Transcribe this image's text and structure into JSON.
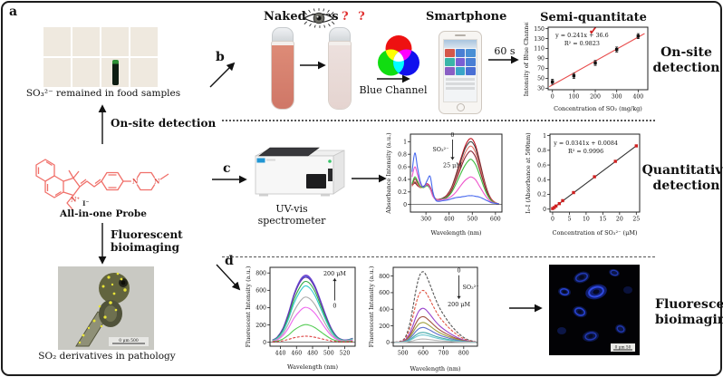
{
  "figure": {
    "panel_a_label": "a",
    "panel_b_label": "b",
    "panel_c_label": "c",
    "panel_d_label": "d"
  },
  "left_column": {
    "food_caption": "SO₃²⁻ remained in food samples",
    "onsite_arrow_label": "On-site detection",
    "probe_name": "All-in-one Probe",
    "structure_labels": {
      "n_plus": "N⁺",
      "n_left": "N",
      "n_right": "N",
      "iodide": "I⁻"
    },
    "bioimaging_arrow_line1": "Fluorescent",
    "bioimaging_arrow_line2": "bioimaging",
    "fish_caption": "SO₂ derivatives in pathology",
    "fish_scalebar": "0   μm   500"
  },
  "panel_b": {
    "naked_eyes_label": "Naked eyes",
    "question_marks": "? ?",
    "blue_channel_label": "Blue Channel",
    "smartphone_label": "Smartphone",
    "reaction_time": "60 s",
    "plot_title": "Semi-quantitate",
    "check_mark": "✓",
    "side_label_line1": "On-site",
    "side_label_line2": "detection"
  },
  "panel_c": {
    "instrument_line1": "UV-vis",
    "instrument_line2": "spectrometer",
    "side_label_line1": "Quantitative",
    "side_label_line2": "detection"
  },
  "panel_d": {
    "side_label_line1": "Fluorescent",
    "side_label_line2": "bioimaging",
    "cell_scalebar": "0  μm  50"
  },
  "colors": {
    "accent_red": "#e03030",
    "probe_structure": "#f0706a",
    "fit_line_red": "#e84c4c"
  },
  "chart_data": [
    {
      "id": "blue-channel-calibration",
      "type": "scatter",
      "title": "Semi-quantitate",
      "xlabel": "Concentration of SO₂ (mg/kg)",
      "ylabel": "Intensity of Blue Channel",
      "xlim": [
        -20,
        445
      ],
      "ylim": [
        27,
        153
      ],
      "xticks": [
        0,
        100,
        200,
        300,
        400
      ],
      "yticks": [
        30,
        50,
        70,
        90,
        110,
        130,
        150
      ],
      "points": [
        [
          0,
          43
        ],
        [
          100,
          55
        ],
        [
          200,
          81
        ],
        [
          300,
          108
        ],
        [
          400,
          135
        ]
      ],
      "error": 5,
      "point_color": "#111111",
      "fit": {
        "slope": 0.241,
        "intercept": 36.6,
        "color": "#e84c4c",
        "x0": -15,
        "x1": 430
      },
      "annotations": [
        {
          "x": 0.34,
          "y": 0.16,
          "lines": [
            "y = 0.241x + 36.6",
            "R² = 0.9823"
          ]
        }
      ]
    },
    {
      "id": "absorbance-spectra",
      "type": "line",
      "xlabel": "Wavelength (nm)",
      "ylabel": "Absorbance Intensity (a.u.)",
      "xlim": [
        233,
        628
      ],
      "ylim": [
        -0.12,
        1.12
      ],
      "xticks": [
        300,
        400,
        500,
        600
      ],
      "yticks": [
        0,
        0.2,
        0.4,
        0.6,
        0.8,
        1
      ],
      "hline": 0,
      "x": [
        240,
        252,
        264,
        276,
        290,
        305,
        318,
        330,
        342,
        356,
        372,
        390,
        410,
        430,
        450,
        468,
        482,
        492,
        502,
        515,
        530,
        548,
        565,
        582,
        600,
        615
      ],
      "series": [
        {
          "color": "#c1121f",
          "y": [
            0.3,
            0.34,
            0.3,
            0.27,
            0.29,
            0.33,
            0.28,
            0.16,
            0.09,
            0.08,
            0.1,
            0.15,
            0.27,
            0.48,
            0.72,
            0.92,
            1.02,
            1.05,
            1.03,
            0.93,
            0.72,
            0.44,
            0.22,
            0.09,
            0.03,
            0.01
          ]
        },
        {
          "color": "#444444",
          "y": [
            0.3,
            0.35,
            0.31,
            0.27,
            0.29,
            0.32,
            0.27,
            0.15,
            0.09,
            0.08,
            0.1,
            0.14,
            0.26,
            0.46,
            0.69,
            0.88,
            0.97,
            1.0,
            0.98,
            0.89,
            0.69,
            0.42,
            0.21,
            0.08,
            0.03,
            0.01
          ]
        },
        {
          "color": "#e8756a",
          "y": [
            0.29,
            0.37,
            0.32,
            0.27,
            0.28,
            0.31,
            0.26,
            0.15,
            0.09,
            0.08,
            0.09,
            0.13,
            0.24,
            0.42,
            0.63,
            0.81,
            0.9,
            0.93,
            0.91,
            0.82,
            0.64,
            0.39,
            0.19,
            0.08,
            0.03,
            0.01
          ]
        },
        {
          "color": "#8b2635",
          "y": [
            0.31,
            0.41,
            0.35,
            0.29,
            0.28,
            0.31,
            0.26,
            0.14,
            0.08,
            0.08,
            0.09,
            0.12,
            0.22,
            0.39,
            0.58,
            0.74,
            0.82,
            0.85,
            0.83,
            0.75,
            0.58,
            0.36,
            0.18,
            0.07,
            0.02,
            0.01
          ]
        },
        {
          "color": "#3dbb3d",
          "y": [
            0.33,
            0.44,
            0.37,
            0.29,
            0.27,
            0.3,
            0.25,
            0.14,
            0.08,
            0.07,
            0.09,
            0.11,
            0.19,
            0.33,
            0.49,
            0.62,
            0.69,
            0.72,
            0.7,
            0.63,
            0.49,
            0.3,
            0.15,
            0.06,
            0.02,
            0.01
          ]
        },
        {
          "color": "#ee55cc",
          "y": [
            0.44,
            0.6,
            0.47,
            0.33,
            0.28,
            0.32,
            0.26,
            0.13,
            0.08,
            0.07,
            0.08,
            0.09,
            0.13,
            0.2,
            0.3,
            0.38,
            0.42,
            0.44,
            0.43,
            0.39,
            0.3,
            0.19,
            0.1,
            0.04,
            0.02,
            0.01
          ]
        },
        {
          "color": "#4466ee",
          "y": [
            0.52,
            0.82,
            0.58,
            0.36,
            0.28,
            0.38,
            0.45,
            0.2,
            0.07,
            0.05,
            0.06,
            0.07,
            0.09,
            0.11,
            0.12,
            0.13,
            0.14,
            0.14,
            0.14,
            0.13,
            0.12,
            0.09,
            0.06,
            0.03,
            0.02,
            0.01
          ]
        }
      ],
      "conc_arrow": {
        "fx": 0.46,
        "fy0": 0.07,
        "fy1": 0.33,
        "dir": "down",
        "top": "0",
        "bottom": "25 μM",
        "side": "SO₃²⁻",
        "side_pos": "left"
      }
    },
    {
      "id": "sulfite-calibration",
      "type": "scatter",
      "xlabel": "Concentration of SO₃²⁻ (μM)",
      "ylabel": "I₀-I (Absorbance at 500nm)",
      "xlim": [
        -0.8,
        26
      ],
      "ylim": [
        -0.04,
        1.02
      ],
      "xticks": [
        0,
        5,
        10,
        15,
        20,
        25
      ],
      "yticks": [
        0,
        0.2,
        0.4,
        0.6,
        0.8,
        1
      ],
      "points": [
        [
          0,
          0.008
        ],
        [
          0.5,
          0.022
        ],
        [
          1,
          0.042
        ],
        [
          2,
          0.075
        ],
        [
          3,
          0.115
        ],
        [
          6.25,
          0.225
        ],
        [
          12.5,
          0.44
        ],
        [
          18.75,
          0.65
        ],
        [
          25,
          0.86
        ]
      ],
      "point_color": "#d02020",
      "fit": {
        "slope": 0.0341,
        "intercept": 0.0084,
        "color": "#333333",
        "x0": 0,
        "x1": 25
      },
      "annotations": [
        {
          "x": 0.4,
          "y": 0.14,
          "lines": [
            "y = 0.0341x + 0.0084",
            "R² = 0.9996"
          ]
        }
      ]
    },
    {
      "id": "fluorescence-enhancement",
      "type": "line",
      "xlabel": "Wavelength (nm)",
      "ylabel": "Fluorescent Intensity (a.u.)",
      "xlim": [
        427,
        533
      ],
      "ylim": [
        -45,
        865
      ],
      "xticks": [
        440,
        460,
        480,
        500,
        520
      ],
      "yticks": [
        0,
        200,
        400,
        600,
        800
      ],
      "hline": 0,
      "x": [
        430,
        436,
        443,
        450,
        457,
        464,
        470,
        476,
        483,
        490,
        497,
        504,
        511,
        518,
        524,
        530
      ],
      "series": [
        {
          "color": "#8844cc",
          "y": [
            25,
            60,
            160,
            340,
            560,
            710,
            772,
            755,
            650,
            480,
            300,
            150,
            60,
            28,
            30,
            45
          ]
        },
        {
          "color": "#4455dd",
          "y": [
            24,
            58,
            155,
            332,
            550,
            698,
            760,
            742,
            638,
            470,
            293,
            146,
            58,
            27,
            29,
            47
          ]
        },
        {
          "color": "#6633aa",
          "y": [
            23,
            56,
            150,
            324,
            540,
            686,
            748,
            730,
            627,
            461,
            287,
            142,
            56,
            26,
            28,
            44
          ]
        },
        {
          "color": "#33aa44",
          "y": [
            21,
            50,
            135,
            295,
            495,
            632,
            700,
            683,
            585,
            428,
            265,
            130,
            51,
            24,
            26,
            40
          ]
        },
        {
          "color": "#33cccc",
          "y": [
            19,
            45,
            122,
            268,
            452,
            580,
            648,
            630,
            538,
            392,
            242,
            118,
            46,
            22,
            24,
            37
          ]
        },
        {
          "color": "#aaaaaa",
          "y": [
            15,
            36,
            98,
            214,
            362,
            466,
            520,
            506,
            432,
            314,
            194,
            94,
            37,
            18,
            20,
            30
          ]
        },
        {
          "color": "#ee66ee",
          "y": [
            12,
            28,
            76,
            165,
            280,
            360,
            402,
            390,
            333,
            242,
            149,
            72,
            28,
            14,
            16,
            23
          ]
        },
        {
          "color": "#55cc55",
          "y": [
            8,
            15,
            38,
            83,
            141,
            182,
            203,
            197,
            168,
            122,
            75,
            36,
            15,
            8,
            10,
            14
          ]
        },
        {
          "color": "#dd4444",
          "dash": true,
          "y": [
            6,
            9,
            18,
            34,
            52,
            64,
            70,
            68,
            58,
            43,
            28,
            15,
            8,
            5,
            6,
            8
          ]
        }
      ],
      "conc_arrow": {
        "fx": 0.76,
        "fy0": 0.14,
        "fy1": 0.42,
        "dir": "up",
        "top": "200 μM",
        "bottom": "0"
      }
    },
    {
      "id": "fluorescence-quenching",
      "type": "line",
      "xlabel": "Wavelength (nm)",
      "ylabel": "Fluorescent Intensity (a.u.)",
      "xlim": [
        452,
        868
      ],
      "ylim": [
        -45,
        905
      ],
      "xticks": [
        500,
        600,
        700,
        800
      ],
      "yticks": [
        0,
        200,
        400,
        600,
        800
      ],
      "hline": 0,
      "x": [
        460,
        475,
        490,
        505,
        520,
        535,
        550,
        565,
        580,
        595,
        610,
        630,
        655,
        680,
        710,
        740,
        770,
        800,
        830,
        860
      ],
      "series": [
        {
          "color": "#555555",
          "dash": true,
          "y": [
            4,
            8,
            16,
            40,
            110,
            240,
            430,
            640,
            790,
            850,
            830,
            720,
            560,
            420,
            300,
            200,
            120,
            60,
            25,
            8
          ]
        },
        {
          "color": "#e05544",
          "dash": true,
          "y": [
            3,
            6,
            12,
            30,
            82,
            178,
            318,
            472,
            582,
            625,
            611,
            530,
            412,
            309,
            221,
            147,
            88,
            44,
            18,
            6
          ]
        },
        {
          "color": "#9944cc",
          "y": [
            2,
            4,
            8,
            20,
            54,
            117,
            209,
            310,
            382,
            410,
            401,
            348,
            270,
            203,
            145,
            97,
            58,
            29,
            12,
            4
          ]
        },
        {
          "color": "#a05040",
          "y": [
            2,
            3,
            6,
            15,
            41,
            89,
            158,
            235,
            290,
            310,
            303,
            263,
            205,
            154,
            110,
            73,
            44,
            22,
            9,
            3
          ]
        },
        {
          "color": "#a0a040",
          "y": [
            1,
            3,
            5,
            12,
            32,
            69,
            123,
            182,
            225,
            240,
            235,
            204,
            158,
            119,
            85,
            57,
            34,
            17,
            7,
            2
          ]
        },
        {
          "color": "#6070cc",
          "y": [
            1,
            2,
            4,
            9,
            24,
            52,
            92,
            136,
            168,
            180,
            176,
            153,
            119,
            89,
            64,
            42,
            25,
            13,
            5,
            2
          ]
        },
        {
          "color": "#40a8a8",
          "y": [
            1,
            1,
            3,
            6,
            16,
            35,
            62,
            91,
            113,
            120,
            118,
            102,
            79,
            60,
            43,
            28,
            17,
            9,
            4,
            1
          ]
        },
        {
          "color": "#70c8d0",
          "y": [
            1,
            1,
            2,
            5,
            12,
            26,
            46,
            68,
            84,
            90,
            88,
            77,
            59,
            45,
            32,
            21,
            13,
            6,
            3,
            1
          ]
        },
        {
          "color": "#b8b8b8",
          "y": [
            0,
            1,
            1,
            2,
            6,
            12,
            21,
            31,
            38,
            41,
            40,
            35,
            27,
            20,
            15,
            10,
            6,
            3,
            1,
            0
          ]
        }
      ],
      "conc_arrow": {
        "fx": 0.78,
        "fy0": 0.1,
        "fy1": 0.4,
        "dir": "down",
        "top": "0",
        "bottom": "200 μM",
        "side": "SO₃²⁻",
        "side_pos": "right"
      }
    }
  ]
}
